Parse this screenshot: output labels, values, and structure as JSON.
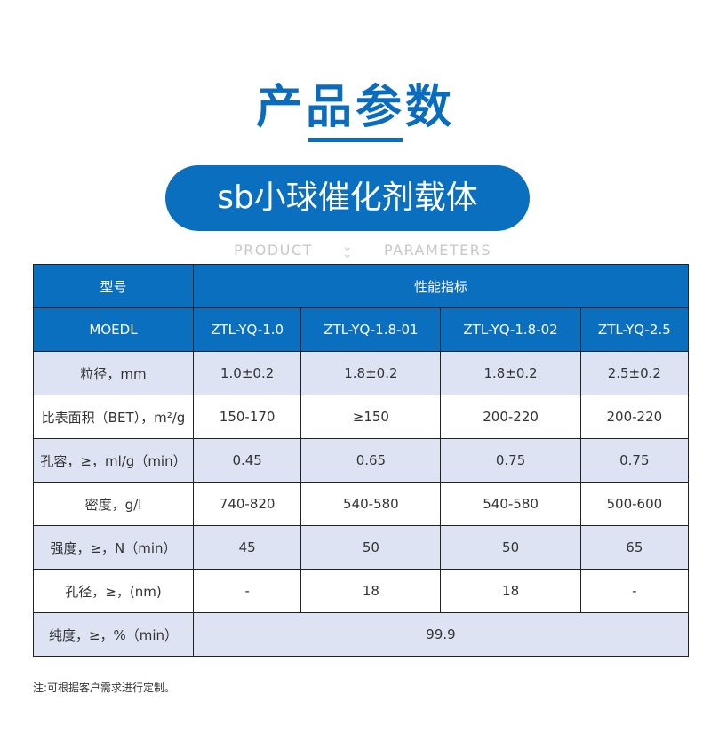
{
  "title": "产品参数",
  "product_name": "sb小球催化剂载体",
  "subtitle_left": "PRODUCT",
  "subtitle_right": "PARAMETERS",
  "table": {
    "header_model": "型号",
    "header_perf": "性能指标",
    "header_moedl": "MOEDL",
    "models": [
      "ZTL-YQ-1.0",
      "ZTL-YQ-1.8-01",
      "ZTL-YQ-1.8-02",
      "ZTL-YQ-2.5"
    ],
    "rows": [
      {
        "label": "粒径，mm",
        "values": [
          "1.0±0.2",
          "1.8±0.2",
          "1.8±0.2",
          "2.5±0.2"
        ]
      },
      {
        "label": "比表面积（BET），m²/g",
        "values": [
          "150-170",
          "≥150",
          "200-220",
          "200-220"
        ]
      },
      {
        "label": "孔容，≥，ml/g（min）",
        "values": [
          "0.45",
          "0.65",
          "0.75",
          "0.75"
        ]
      },
      {
        "label": "密度，g/l",
        "values": [
          "740-820",
          "540-580",
          "540-580",
          "500-600"
        ]
      },
      {
        "label": "强度，≥，N（min）",
        "values": [
          "45",
          "50",
          "50",
          "65"
        ]
      },
      {
        "label": "孔径，≥，(nm)",
        "values": [
          "-",
          "18",
          "18",
          "-"
        ]
      }
    ],
    "purity": {
      "label": "纯度，≥，%（min）",
      "value": "99.9"
    }
  },
  "note": "注:可根据客户需求进行定制。"
}
